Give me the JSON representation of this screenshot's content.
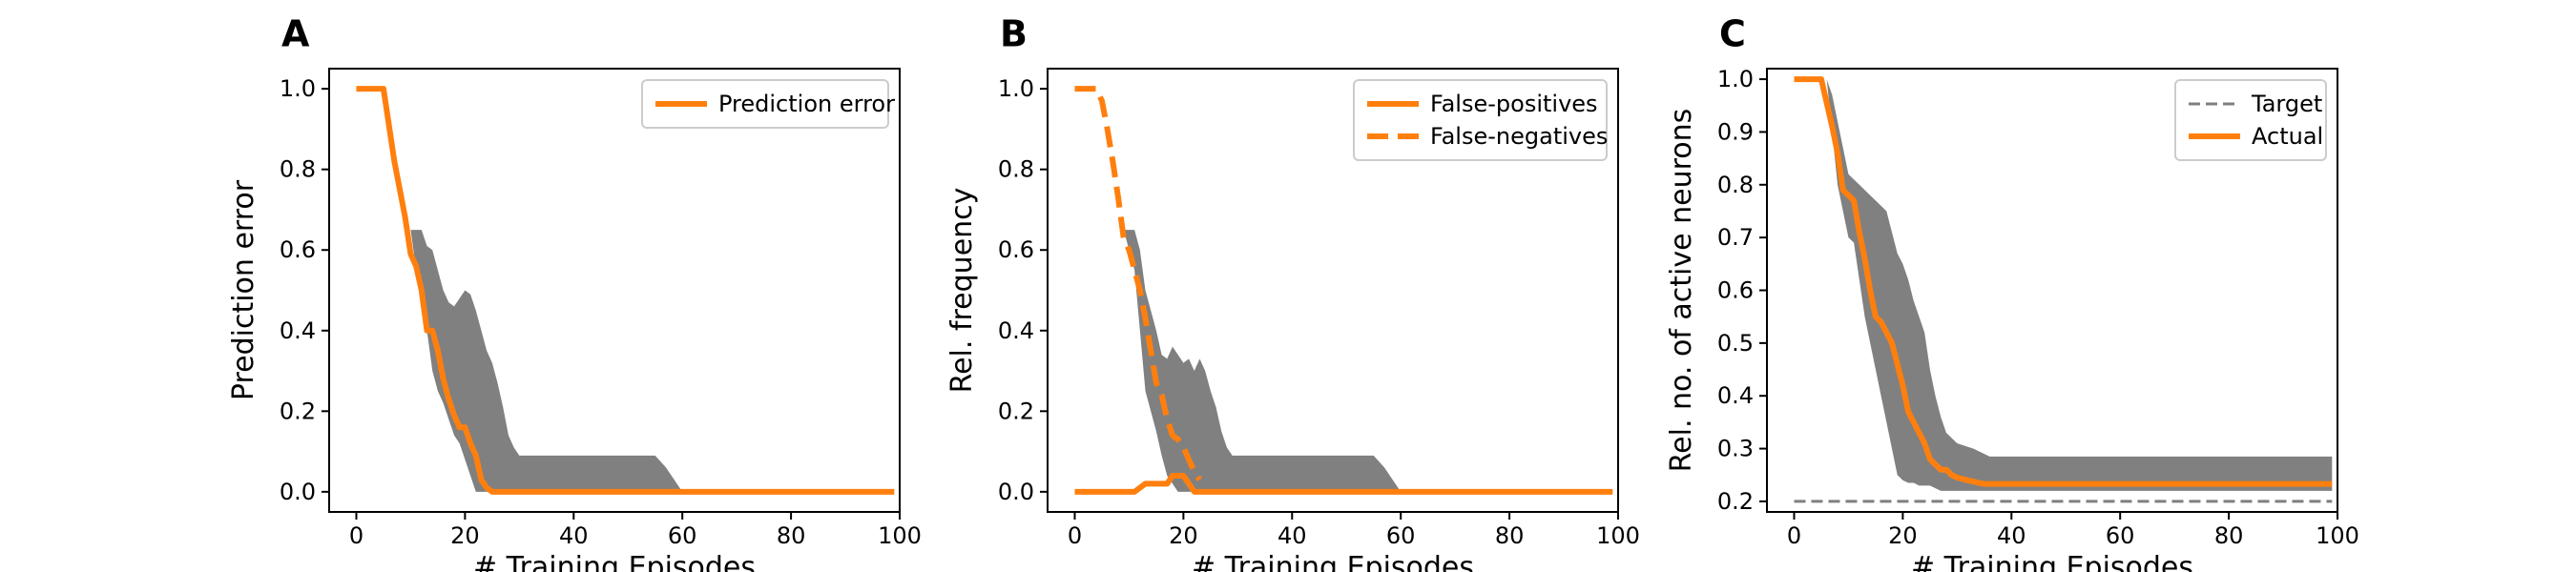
{
  "colors": {
    "line": "#ff7f0e",
    "band": "#808080",
    "target": "#7f7f7f"
  },
  "chart_data": [
    {
      "panel": "A",
      "type": "line",
      "xlabel": "# Training Episodes",
      "ylabel": "Prediction error",
      "xlim": [
        -5,
        100
      ],
      "ylim": [
        -0.05,
        1.05
      ],
      "xticks": [
        "0",
        "20",
        "40",
        "60",
        "80",
        "100"
      ],
      "yticks": [
        "0.0",
        "0.2",
        "0.4",
        "0.6",
        "0.8",
        "1.0"
      ],
      "legend_position": "top-right",
      "series": [
        {
          "name": "Prediction error",
          "style": "solid",
          "x": [
            0,
            5,
            7,
            9,
            10,
            11,
            12,
            13,
            14,
            15,
            16,
            17,
            18,
            19,
            20,
            21,
            22,
            23,
            24,
            25,
            26,
            30,
            40,
            60,
            80,
            99
          ],
          "y": [
            1.0,
            1.0,
            0.82,
            0.68,
            0.59,
            0.56,
            0.5,
            0.4,
            0.4,
            0.35,
            0.28,
            0.23,
            0.19,
            0.16,
            0.16,
            0.12,
            0.09,
            0.03,
            0.01,
            0.0,
            0.0,
            0.0,
            0.0,
            0.0,
            0.0,
            0.0
          ]
        }
      ],
      "bands": [
        {
          "x": [
            10,
            12,
            13,
            14,
            15,
            16,
            17,
            18,
            19,
            20,
            21,
            22,
            23,
            24,
            25,
            26,
            27,
            28,
            29,
            30,
            55,
            57,
            60
          ],
          "upper": [
            0.65,
            0.65,
            0.61,
            0.6,
            0.55,
            0.5,
            0.47,
            0.46,
            0.48,
            0.5,
            0.49,
            0.45,
            0.4,
            0.35,
            0.32,
            0.27,
            0.21,
            0.14,
            0.11,
            0.09,
            0.09,
            0.06,
            0.0
          ],
          "lower": [
            0.65,
            0.45,
            0.4,
            0.3,
            0.25,
            0.22,
            0.18,
            0.14,
            0.12,
            0.08,
            0.04,
            0.0,
            0.0,
            0.0,
            0.0,
            0.0,
            0.0,
            0.0,
            0.0,
            0.0,
            0.0,
            0.0,
            0.0
          ]
        }
      ]
    },
    {
      "panel": "B",
      "type": "line",
      "xlabel": "# Training Episodes",
      "ylabel": "Rel. frequency",
      "xlim": [
        -5,
        100
      ],
      "ylim": [
        -0.05,
        1.05
      ],
      "xticks": [
        "0",
        "20",
        "40",
        "60",
        "80",
        "100"
      ],
      "yticks": [
        "0.0",
        "0.2",
        "0.4",
        "0.6",
        "0.8",
        "1.0"
      ],
      "legend_position": "top-right",
      "series": [
        {
          "name": "False-positives",
          "style": "solid",
          "x": [
            0,
            11,
            12,
            13,
            16,
            17,
            18,
            19,
            20,
            21,
            22,
            23,
            24,
            40,
            60,
            80,
            99
          ],
          "y": [
            0.0,
            0.0,
            0.01,
            0.02,
            0.02,
            0.02,
            0.04,
            0.04,
            0.04,
            0.02,
            0.0,
            0.0,
            0.0,
            0.0,
            0.0,
            0.0,
            0.0
          ]
        },
        {
          "name": "False-negatives",
          "style": "dashed",
          "x": [
            0,
            4,
            5,
            6,
            7,
            8,
            9,
            10,
            11,
            12,
            13,
            14,
            15,
            16,
            17,
            18,
            19,
            20,
            21,
            22,
            23
          ],
          "y": [
            1.0,
            1.0,
            0.97,
            0.9,
            0.82,
            0.73,
            0.63,
            0.6,
            0.55,
            0.5,
            0.43,
            0.35,
            0.27,
            0.24,
            0.18,
            0.14,
            0.13,
            0.11,
            0.08,
            0.05,
            0.03
          ]
        }
      ],
      "bands": [
        {
          "x": [
            9,
            11,
            12,
            13,
            14,
            15,
            16,
            17,
            18,
            19,
            20,
            21,
            22,
            23,
            24,
            25,
            26,
            27,
            28,
            29,
            30,
            55,
            57,
            60
          ],
          "upper": [
            0.65,
            0.65,
            0.6,
            0.5,
            0.45,
            0.4,
            0.34,
            0.33,
            0.36,
            0.34,
            0.32,
            0.33,
            0.3,
            0.33,
            0.3,
            0.25,
            0.21,
            0.15,
            0.11,
            0.09,
            0.09,
            0.09,
            0.06,
            0.0
          ],
          "lower": [
            0.65,
            0.55,
            0.4,
            0.25,
            0.2,
            0.15,
            0.09,
            0.04,
            0.02,
            0.0,
            0.0,
            0.0,
            0.0,
            0.0,
            0.0,
            0.0,
            0.0,
            0.0,
            0.0,
            0.0,
            0.0,
            0.0,
            0.0,
            0.0
          ]
        }
      ]
    },
    {
      "panel": "C",
      "type": "line",
      "xlabel": "# Training Episodes",
      "ylabel": "Rel. no. of active neurons",
      "xlim": [
        -5,
        100
      ],
      "ylim": [
        0.18,
        1.02
      ],
      "xticks": [
        "0",
        "20",
        "40",
        "60",
        "80",
        "100"
      ],
      "yticks": [
        "0.2",
        "0.3",
        "0.4",
        "0.5",
        "0.6",
        "0.7",
        "0.8",
        "0.9",
        "1.0"
      ],
      "legend_position": "top-right",
      "series": [
        {
          "name": "Target",
          "style": "dashed-thin",
          "x": [
            0,
            99
          ],
          "y": [
            0.2,
            0.2
          ]
        },
        {
          "name": "Actual",
          "style": "solid",
          "x": [
            0,
            5,
            7,
            8,
            9,
            10,
            11,
            12,
            13,
            14,
            15,
            16,
            17,
            18,
            19,
            20,
            21,
            22,
            23,
            24,
            25,
            26,
            27,
            28,
            29,
            30,
            32,
            34,
            35,
            40,
            60,
            80,
            99
          ],
          "y": [
            1.0,
            1.0,
            0.91,
            0.86,
            0.79,
            0.78,
            0.77,
            0.71,
            0.66,
            0.6,
            0.55,
            0.54,
            0.52,
            0.5,
            0.46,
            0.42,
            0.37,
            0.35,
            0.33,
            0.31,
            0.28,
            0.27,
            0.26,
            0.26,
            0.25,
            0.245,
            0.24,
            0.235,
            0.233,
            0.233,
            0.233,
            0.233,
            0.233
          ]
        }
      ],
      "bands": [
        {
          "x": [
            5,
            6,
            7,
            8,
            9,
            10,
            11,
            12,
            13,
            14,
            15,
            16,
            17,
            18,
            19,
            20,
            21,
            22,
            23,
            24,
            25,
            26,
            27,
            28,
            30,
            33,
            35,
            36,
            40,
            60,
            80,
            99
          ],
          "upper": [
            1.0,
            1.0,
            0.97,
            0.92,
            0.87,
            0.82,
            0.81,
            0.8,
            0.79,
            0.78,
            0.77,
            0.76,
            0.75,
            0.71,
            0.67,
            0.65,
            0.62,
            0.58,
            0.55,
            0.52,
            0.45,
            0.4,
            0.36,
            0.33,
            0.31,
            0.3,
            0.29,
            0.285,
            0.285,
            0.285,
            0.285,
            0.285
          ],
          "lower": [
            1.0,
            1.0,
            0.9,
            0.8,
            0.75,
            0.7,
            0.69,
            0.62,
            0.55,
            0.5,
            0.45,
            0.4,
            0.35,
            0.3,
            0.25,
            0.24,
            0.235,
            0.235,
            0.23,
            0.23,
            0.23,
            0.225,
            0.22,
            0.22,
            0.22,
            0.22,
            0.22,
            0.22,
            0.22,
            0.22,
            0.22,
            0.22
          ]
        }
      ]
    }
  ]
}
